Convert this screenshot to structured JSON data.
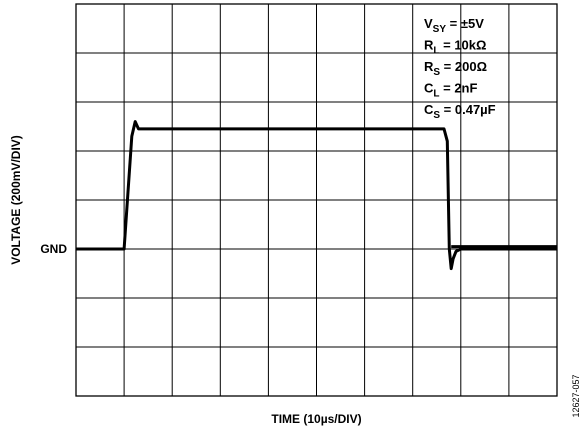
{
  "chart_data": {
    "type": "line",
    "xlabel": "TIME (10µs/DIV)",
    "ylabel": "VOLTAGE (200mV/DIV)",
    "x_divisions": 10,
    "y_divisions": 8,
    "xlim": [
      0,
      100
    ],
    "ylim": [
      -600,
      1000
    ],
    "ytick_labels": [
      {
        "value": 0,
        "label": "GND"
      }
    ],
    "grid": true,
    "series": [
      {
        "x": [
          0,
          10,
          11.6,
          12.3,
          13.0,
          14.0,
          20,
          30,
          40,
          50,
          60,
          70,
          76.5,
          77.2,
          77.6,
          78.0,
          78.4,
          79.0,
          80,
          90,
          100
        ],
        "y": [
          0,
          0,
          460,
          520,
          490,
          490,
          490,
          490,
          490,
          490,
          490,
          490,
          490,
          440,
          0,
          -80,
          -40,
          -10,
          0,
          0,
          0
        ]
      },
      {
        "x": [
          78.0,
          80,
          90,
          100
        ],
        "y": [
          10,
          10,
          10,
          10
        ]
      }
    ],
    "annotations": [
      {
        "base": "V",
        "sub": "SY",
        "rest": " = ±5V"
      },
      {
        "base": "R",
        "sub": "L",
        "rest": " = 10kΩ"
      },
      {
        "base": "R",
        "sub": "S",
        "rest": " = 200Ω"
      },
      {
        "base": "C",
        "sub": "L",
        "rest": " = 2nF"
      },
      {
        "base": "C",
        "sub": "S",
        "rest": " = 0.47µF"
      }
    ],
    "figure_id": "12627-057"
  }
}
